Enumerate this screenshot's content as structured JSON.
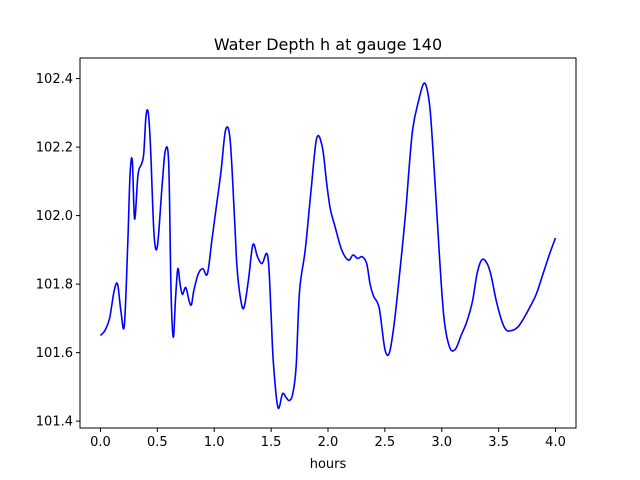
{
  "chart_data": {
    "type": "line",
    "title": "Water Depth h at gauge 140",
    "xlabel": "hours",
    "ylabel": "",
    "xlim": [
      -0.18,
      4.18
    ],
    "ylim": [
      101.38,
      102.46
    ],
    "xticks": [
      0.0,
      0.5,
      1.0,
      1.5,
      2.0,
      2.5,
      3.0,
      3.5,
      4.0
    ],
    "xtick_labels": [
      "0.0",
      "0.5",
      "1.0",
      "1.5",
      "2.0",
      "2.5",
      "3.0",
      "3.5",
      "4.0"
    ],
    "yticks": [
      101.4,
      101.6,
      101.8,
      102.0,
      102.2,
      102.4
    ],
    "ytick_labels": [
      "101.4",
      "101.6",
      "101.8",
      "102.0",
      "102.2",
      "102.4"
    ],
    "grid": false,
    "series": [
      {
        "color": "#0000ff",
        "x": [
          0.0,
          0.04,
          0.08,
          0.12,
          0.15,
          0.18,
          0.21,
          0.24,
          0.26,
          0.28,
          0.3,
          0.33,
          0.36,
          0.38,
          0.4,
          0.42,
          0.44,
          0.47,
          0.5,
          0.54,
          0.57,
          0.6,
          0.62,
          0.64,
          0.66,
          0.68,
          0.7,
          0.72,
          0.75,
          0.78,
          0.8,
          0.82,
          0.86,
          0.9,
          0.94,
          0.98,
          1.02,
          1.06,
          1.1,
          1.14,
          1.18,
          1.2,
          1.23,
          1.26,
          1.3,
          1.34,
          1.38,
          1.42,
          1.46,
          1.48,
          1.5,
          1.52,
          1.56,
          1.6,
          1.63,
          1.66,
          1.69,
          1.72,
          1.75,
          1.8,
          1.85,
          1.9,
          1.95,
          1.99,
          2.02,
          2.06,
          2.12,
          2.18,
          2.22,
          2.26,
          2.3,
          2.34,
          2.37,
          2.4,
          2.45,
          2.5,
          2.54,
          2.58,
          2.62,
          2.68,
          2.74,
          2.8,
          2.84,
          2.87,
          2.9,
          2.94,
          2.98,
          3.02,
          3.07,
          3.12,
          3.17,
          3.22,
          3.27,
          3.31,
          3.35,
          3.39,
          3.43,
          3.48,
          3.53,
          3.57,
          3.62,
          3.67,
          3.72,
          3.77,
          3.83,
          3.89,
          3.95,
          4.0
        ],
        "y": [
          101.65,
          101.665,
          101.7,
          101.78,
          101.8,
          101.72,
          101.68,
          101.92,
          102.12,
          102.16,
          101.99,
          102.12,
          102.15,
          102.18,
          102.29,
          102.3,
          102.2,
          101.95,
          101.91,
          102.08,
          102.19,
          102.15,
          101.78,
          101.645,
          101.76,
          101.845,
          101.8,
          101.77,
          101.79,
          101.75,
          101.74,
          101.78,
          101.83,
          101.845,
          101.83,
          101.93,
          102.03,
          102.13,
          102.25,
          102.22,
          101.98,
          101.85,
          101.76,
          101.73,
          101.81,
          101.915,
          101.88,
          101.86,
          101.89,
          101.85,
          101.71,
          101.57,
          101.44,
          101.48,
          101.47,
          101.46,
          101.48,
          101.56,
          101.78,
          101.9,
          102.07,
          102.225,
          102.2,
          102.09,
          102.02,
          101.97,
          101.9,
          101.87,
          101.885,
          101.875,
          101.88,
          101.86,
          101.8,
          101.765,
          101.73,
          101.61,
          101.6,
          101.68,
          101.8,
          102.0,
          102.24,
          102.34,
          102.385,
          102.37,
          102.3,
          102.1,
          101.88,
          101.7,
          101.615,
          101.61,
          101.65,
          101.69,
          101.75,
          101.83,
          101.87,
          101.865,
          101.83,
          101.75,
          101.69,
          101.665,
          101.665,
          101.675,
          101.7,
          101.73,
          101.77,
          101.83,
          101.89,
          101.935
        ]
      }
    ]
  }
}
